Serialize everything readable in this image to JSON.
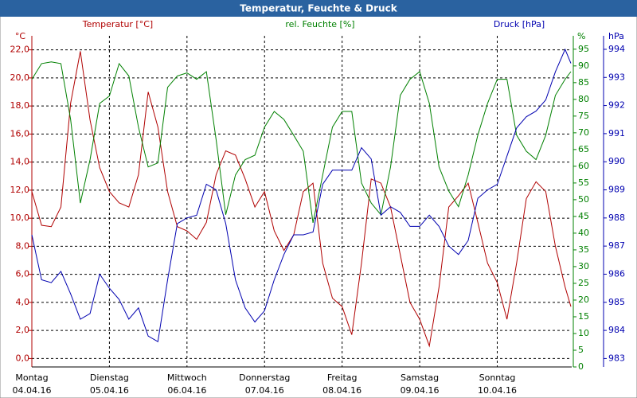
{
  "chart_data": {
    "type": "line",
    "title": "Temperatur, Feuchte & Druck",
    "ylabel": "°C",
    "y2label": "%",
    "y3label": "hPa",
    "x": [
      0,
      0.125,
      0.25,
      0.375,
      0.5,
      0.625,
      0.75,
      0.875,
      1,
      1.125,
      1.25,
      1.375,
      1.5,
      1.625,
      1.75,
      1.875,
      2,
      2.125,
      2.25,
      2.375,
      2.5,
      2.625,
      2.75,
      2.875,
      3,
      3.125,
      3.25,
      3.375,
      3.5,
      3.625,
      3.75,
      3.875,
      4,
      4.125,
      4.25,
      4.375,
      4.5,
      4.625,
      4.75,
      4.875,
      5,
      5.125,
      5.25,
      5.375,
      5.5,
      5.625,
      5.75,
      5.875,
      6,
      6.125,
      6.25,
      6.375,
      6.5,
      6.625,
      6.75,
      6.875,
      6.95
    ],
    "xlim": [
      0,
      6.96
    ],
    "xticks": [
      {
        "value": 0,
        "label": [
          "Montag",
          "04.04.16"
        ]
      },
      {
        "value": 1,
        "label": [
          "Dienstag",
          "05.04.16"
        ]
      },
      {
        "value": 2,
        "label": [
          "Mittwoch",
          "06.04.16"
        ]
      },
      {
        "value": 3,
        "label": [
          "Donnerstag",
          "07.04.16"
        ]
      },
      {
        "value": 4,
        "label": [
          "Freitag",
          "08.04.16"
        ]
      },
      {
        "value": 5,
        "label": [
          "Samstag",
          "09.04.16"
        ]
      },
      {
        "value": 6,
        "label": [
          "Sonntag",
          "10.04.16"
        ]
      }
    ],
    "ylim": [
      -0.6,
      23
    ],
    "yticks": [
      {
        "value": 0,
        "label": "0,0"
      },
      {
        "value": 2,
        "label": "2,0"
      },
      {
        "value": 4,
        "label": "4,0"
      },
      {
        "value": 6,
        "label": "6,0"
      },
      {
        "value": 8,
        "label": "8,0"
      },
      {
        "value": 10,
        "label": "10,0"
      },
      {
        "value": 12,
        "label": "12,0"
      },
      {
        "value": 14,
        "label": "14,0"
      },
      {
        "value": 16,
        "label": "16,0"
      },
      {
        "value": 18,
        "label": "18,0"
      },
      {
        "value": 20,
        "label": "20,0"
      },
      {
        "value": 22,
        "label": "22,0"
      }
    ],
    "y2lim": [
      0,
      99
    ],
    "y2ticks": [
      0,
      5,
      10,
      15,
      20,
      25,
      30,
      35,
      40,
      45,
      50,
      55,
      60,
      65,
      70,
      75,
      80,
      85,
      90,
      95
    ],
    "y3lim": [
      982.7,
      994.48
    ],
    "y3ticks": [
      983,
      984,
      985,
      986,
      987,
      988,
      989,
      990,
      991,
      992,
      993,
      994
    ],
    "grid": true,
    "series": [
      {
        "name": "Temperatur [°C]",
        "color": "#b00000",
        "axis": "y",
        "values": [
          11.9,
          9.5,
          9.4,
          10.8,
          18.2,
          21.9,
          17,
          13.6,
          11.9,
          11.1,
          10.8,
          13.1,
          19,
          16.5,
          11.9,
          9.4,
          9.1,
          8.5,
          9.7,
          13.1,
          14.8,
          14.5,
          12.8,
          10.8,
          11.9,
          9.1,
          7.7,
          8.8,
          11.9,
          12.5,
          6.8,
          4.3,
          3.7,
          1.7,
          6.8,
          12.8,
          12.5,
          10.8,
          7.4,
          4.0,
          2.8,
          0.9,
          5.1,
          10.8,
          11.6,
          12.5,
          9.7,
          6.8,
          5.4,
          2.8,
          6.8,
          11.4,
          12.6,
          11.9,
          8,
          5.1,
          3.7
        ]
      },
      {
        "name": "rel. Feuchte [%]",
        "color": "#008000",
        "axis": "y2",
        "values": [
          86,
          90.7,
          91.2,
          90.7,
          74,
          49,
          62,
          78.8,
          81,
          90.7,
          87,
          71.7,
          59.8,
          61,
          83.6,
          87,
          87.9,
          86,
          88.3,
          68,
          45.5,
          57.4,
          62,
          63.3,
          71.7,
          76.4,
          74,
          69.3,
          64.5,
          43.1,
          57.4,
          71.7,
          76.4,
          76.4,
          55,
          49,
          45.5,
          59.8,
          81.2,
          86,
          88.3,
          78.8,
          59.8,
          52.6,
          47.9,
          57.4,
          69.3,
          78.8,
          86,
          86,
          69.3,
          64.5,
          62,
          69.3,
          81.2,
          86,
          88.3
        ]
      },
      {
        "name": "Druck [hPa]",
        "color": "#0000b0",
        "axis": "y3",
        "values": [
          987.4,
          985.8,
          985.7,
          986.1,
          985.3,
          984.4,
          984.6,
          986,
          985.5,
          985.1,
          984.4,
          984.8,
          983.8,
          983.6,
          985.8,
          987.8,
          988,
          988.1,
          989.2,
          989,
          987.8,
          985.8,
          984.8,
          984.3,
          984.7,
          985.8,
          986.7,
          987.4,
          987.4,
          987.5,
          989.2,
          989.7,
          989.7,
          989.7,
          990.5,
          990.1,
          988.1,
          988.4,
          988.2,
          987.7,
          987.7,
          988.1,
          987.7,
          987,
          986.7,
          987.2,
          988.7,
          989,
          989.2,
          990.2,
          991.2,
          991.6,
          991.8,
          992.2,
          993.2,
          994,
          993.5
        ]
      }
    ]
  }
}
